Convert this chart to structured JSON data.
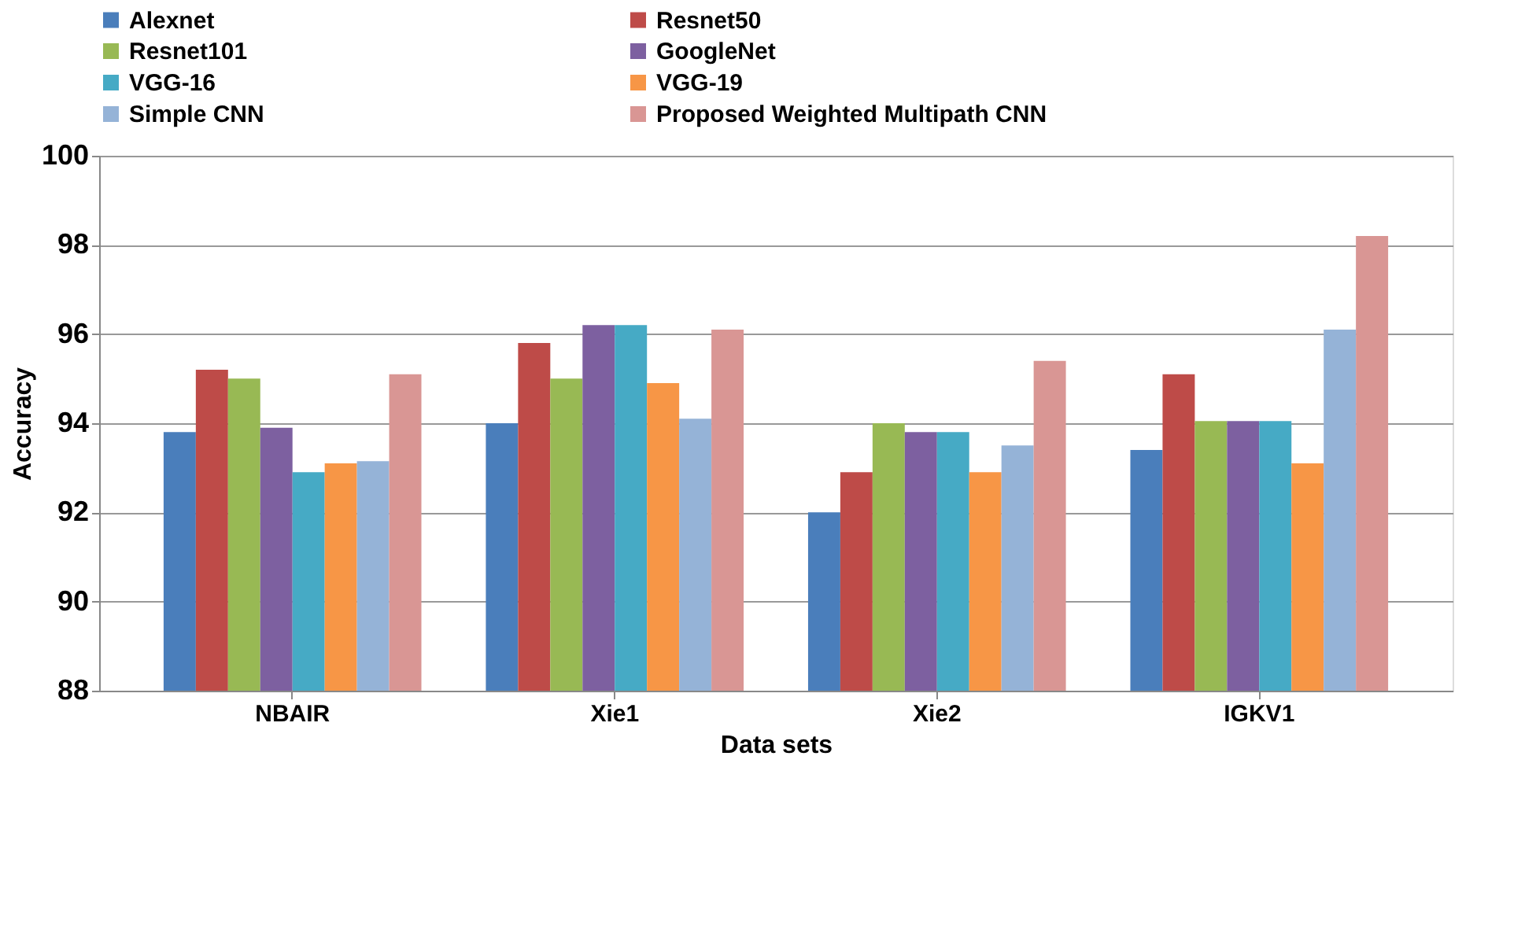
{
  "chart_data": {
    "type": "bar",
    "xlabel": "Data sets",
    "ylabel": "Accuracy",
    "categories": [
      "NBAIR",
      "Xie1",
      "Xie2",
      "IGKV1"
    ],
    "series": [
      {
        "name": "Alexnet",
        "color": "#4a7ebb",
        "values": [
          93.8,
          94.0,
          92.0,
          93.4
        ]
      },
      {
        "name": "Resnet50",
        "color": "#be4b48",
        "values": [
          95.2,
          95.8,
          92.9,
          95.1
        ]
      },
      {
        "name": "Resnet101",
        "color": "#98b954",
        "values": [
          95.0,
          95.0,
          94.0,
          94.05
        ]
      },
      {
        "name": "GoogleNet",
        "color": "#7d60a0",
        "values": [
          93.9,
          96.2,
          93.8,
          94.05
        ]
      },
      {
        "name": "VGG-16",
        "color": "#46aac5",
        "values": [
          92.9,
          96.2,
          93.8,
          94.05
        ]
      },
      {
        "name": "VGG-19",
        "color": "#f79646",
        "values": [
          93.1,
          94.9,
          92.9,
          93.1
        ]
      },
      {
        "name": "Simple CNN",
        "color": "#95b3d7",
        "values": [
          93.15,
          94.1,
          93.5,
          96.1
        ]
      },
      {
        "name": "Proposed Weighted Multipath CNN",
        "color": "#d99694",
        "values": [
          95.1,
          96.1,
          95.4,
          98.2
        ]
      }
    ],
    "ylim": [
      88,
      100
    ],
    "yticks": [
      88,
      90,
      92,
      94,
      96,
      98,
      100
    ],
    "grid": "y",
    "legend": "top"
  }
}
